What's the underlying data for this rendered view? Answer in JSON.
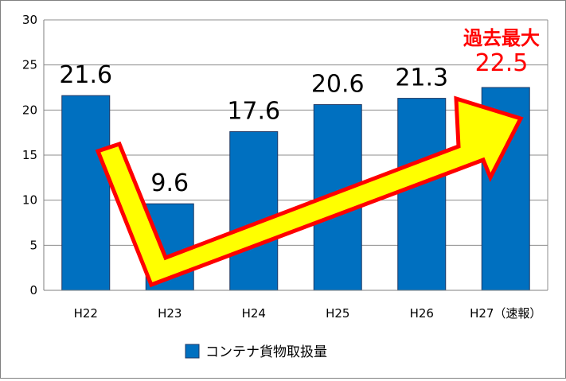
{
  "chart_data": {
    "type": "bar",
    "categories": [
      "H22",
      "H23",
      "H24",
      "H25",
      "H26",
      "H27（速報）"
    ],
    "series": [
      {
        "name": "コンテナ貨物取扱量",
        "values": [
          21.6,
          9.6,
          17.6,
          20.6,
          21.3,
          22.5
        ]
      }
    ],
    "data_labels": [
      "21.6",
      "9.6",
      "17.6",
      "20.6",
      "21.3",
      "22.5"
    ],
    "yticks": [
      "0",
      "5",
      "10",
      "15",
      "20",
      "25",
      "30"
    ],
    "ylim": [
      0,
      30
    ],
    "grid": true,
    "legend": "bottom",
    "annotation": {
      "text": "過去最大",
      "value_label": "22.5"
    },
    "colors": {
      "bar": "#0070c0",
      "bar_edge": "#1f3864",
      "arrow_fill": "#ffff00",
      "arrow_edge": "#ff0000",
      "annotation": "#ff0000"
    }
  }
}
